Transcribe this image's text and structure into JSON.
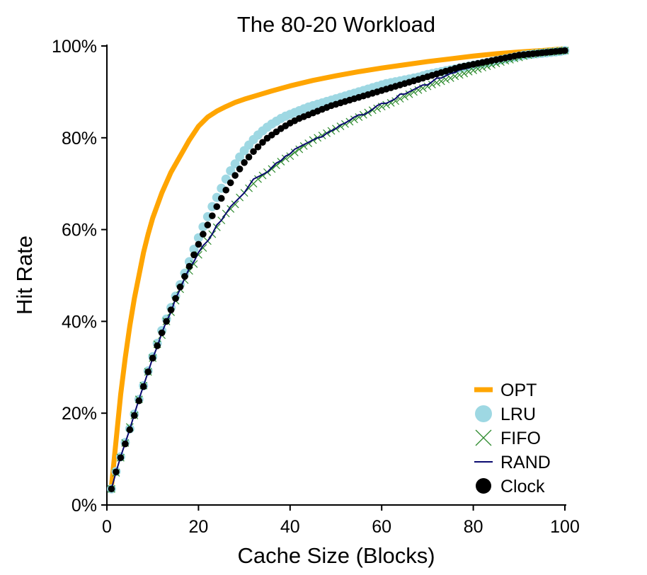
{
  "chart_data": {
    "type": "line",
    "title": "The 80-20 Workload",
    "xlabel": "Cache Size (Blocks)",
    "ylabel": "Hit Rate",
    "xlim": [
      0,
      100
    ],
    "ylim": [
      0,
      100
    ],
    "x_ticks": [
      0,
      20,
      40,
      60,
      80,
      100
    ],
    "x_tick_labels": [
      "0",
      "20",
      "40",
      "60",
      "80",
      "100"
    ],
    "y_ticks": [
      0,
      20,
      40,
      60,
      80,
      100
    ],
    "y_tick_labels": [
      "0%",
      "20%",
      "40%",
      "60%",
      "80%",
      "100%"
    ],
    "grid": false,
    "legend_position": "bottom-right",
    "series": [
      {
        "name": "OPT",
        "color": "#FFA500",
        "style": "thick-line",
        "x": [
          1,
          2,
          3,
          4,
          5,
          6,
          7,
          8,
          9,
          10,
          12,
          14,
          16,
          18,
          20,
          22,
          24,
          26,
          28,
          30,
          33,
          36,
          40,
          45,
          50,
          55,
          60,
          65,
          70,
          75,
          80,
          85,
          90,
          95,
          100
        ],
        "y": [
          4,
          14,
          24,
          32,
          39,
          45,
          50,
          55,
          59,
          62.5,
          68,
          72.5,
          76,
          79.5,
          82.5,
          84.5,
          85.8,
          86.8,
          87.7,
          88.4,
          89.3,
          90.2,
          91.3,
          92.5,
          93.5,
          94.4,
          95.2,
          95.9,
          96.6,
          97.2,
          97.8,
          98.3,
          98.7,
          99,
          99.4
        ]
      },
      {
        "name": "LRU",
        "color": "#9ED8E3",
        "style": "large-dots",
        "x": [
          1,
          2,
          3,
          4,
          5,
          6,
          7,
          8,
          9,
          10,
          11,
          12,
          13,
          14,
          15,
          16,
          17,
          18,
          19,
          20,
          21,
          22,
          23,
          24,
          25,
          26,
          27,
          28,
          29,
          30,
          31,
          32,
          33,
          34,
          35,
          36,
          37,
          38,
          39,
          40,
          41,
          42,
          43,
          44,
          45,
          46,
          47,
          48,
          49,
          50,
          51,
          52,
          53,
          54,
          55,
          56,
          57,
          58,
          59,
          60,
          61,
          62,
          63,
          64,
          65,
          66,
          67,
          68,
          69,
          70,
          71,
          72,
          73,
          74,
          75,
          76,
          77,
          78,
          79,
          80,
          81,
          82,
          83,
          84,
          85,
          86,
          87,
          88,
          89,
          90,
          91,
          92,
          93,
          94,
          95,
          96,
          97,
          98,
          99,
          100
        ],
        "y": [
          3.5,
          7.3,
          10.5,
          13.6,
          16.6,
          19.8,
          23,
          26,
          29.2,
          32.3,
          35.2,
          38,
          40.5,
          43,
          45.5,
          48,
          50.5,
          53,
          55.7,
          58.2,
          60.6,
          62.8,
          65,
          67,
          69,
          71,
          72.8,
          74.3,
          75.8,
          77.2,
          78.4,
          79.6,
          80.6,
          81.5,
          82.3,
          83,
          83.6,
          84.2,
          84.7,
          85.1,
          85.5,
          85.9,
          86.3,
          86.7,
          87,
          87.3,
          87.6,
          87.9,
          88.2,
          88.5,
          88.8,
          89.1,
          89.4,
          89.7,
          90,
          90.3,
          90.6,
          90.9,
          91.2,
          91.5,
          91.8,
          92,
          92.2,
          92.4,
          92.6,
          92.8,
          93,
          93.2,
          93.5,
          93.8,
          94,
          94.2,
          94.4,
          94.6,
          94.8,
          95,
          95.2,
          95.4,
          95.6,
          95.8,
          96,
          96.2,
          96.4,
          96.6,
          96.8,
          97,
          97.2,
          97.4,
          97.6,
          97.8,
          98,
          98.1,
          98.2,
          98.3,
          98.4,
          98.5,
          98.6,
          98.7,
          98.8,
          99
        ]
      },
      {
        "name": "FIFO",
        "color": "#2E8B2E",
        "style": "x-markers",
        "x": [
          1,
          2,
          3,
          4,
          5,
          6,
          7,
          8,
          9,
          10,
          11,
          12,
          13,
          14,
          15,
          16,
          17,
          18,
          19,
          20,
          21,
          22,
          23,
          24,
          25,
          26,
          27,
          28,
          29,
          30,
          31,
          32,
          33,
          34,
          35,
          36,
          37,
          38,
          39,
          40,
          41,
          42,
          43,
          44,
          45,
          46,
          47,
          48,
          49,
          50,
          51,
          52,
          53,
          54,
          55,
          56,
          57,
          58,
          59,
          60,
          61,
          62,
          63,
          64,
          65,
          66,
          67,
          68,
          69,
          70,
          71,
          72,
          73,
          74,
          75,
          76,
          77,
          78,
          79,
          80,
          81,
          82,
          83,
          84,
          85,
          86,
          87,
          88,
          89,
          90,
          91,
          92,
          93,
          94,
          95,
          96,
          97,
          98,
          99,
          100
        ],
        "y": [
          3.5,
          7,
          10.3,
          13.5,
          17,
          19.5,
          23,
          26,
          29,
          32,
          35,
          37,
          40,
          42,
          44.5,
          47,
          49,
          51,
          52.5,
          54.5,
          56,
          57.5,
          59,
          60.5,
          62,
          63.5,
          64.5,
          65.5,
          67,
          68,
          69,
          70,
          71,
          71.8,
          72.5,
          73.2,
          74,
          74.8,
          75.5,
          76,
          76.8,
          77.5,
          78.2,
          78.8,
          79.5,
          80,
          80.5,
          81,
          81.5,
          82,
          82.5,
          83,
          83.5,
          84,
          84.5,
          85,
          85.5,
          86,
          86.4,
          86.8,
          87.2,
          87.6,
          88,
          88.5,
          89,
          89.5,
          90,
          90.4,
          90.8,
          91.2,
          91.6,
          92,
          92.3,
          92.7,
          93,
          93.4,
          93.7,
          94,
          94.4,
          94.7,
          95,
          95.3,
          95.6,
          95.9,
          96.2,
          96.5,
          96.8,
          97,
          97.3,
          97.5,
          97.8,
          98,
          98.2,
          98.4,
          98.5,
          98.6,
          98.7,
          98.8,
          98.9,
          99
        ]
      },
      {
        "name": "RAND",
        "color": "#0A0A70",
        "style": "thin-line",
        "x": [
          1,
          2,
          3,
          4,
          5,
          6,
          7,
          8,
          9,
          10,
          11,
          12,
          13,
          14,
          15,
          16,
          17,
          18,
          19,
          20,
          21,
          22,
          23,
          24,
          25,
          26,
          27,
          28,
          29,
          30,
          31,
          32,
          33,
          34,
          35,
          36,
          37,
          38,
          39,
          40,
          41,
          42,
          43,
          44,
          45,
          46,
          47,
          48,
          49,
          50,
          51,
          52,
          53,
          54,
          55,
          56,
          57,
          58,
          59,
          60,
          61,
          62,
          63,
          64,
          65,
          66,
          67,
          68,
          69,
          70,
          71,
          72,
          73,
          74,
          75,
          76,
          77,
          78,
          79,
          80,
          81,
          82,
          83,
          84,
          85,
          86,
          87,
          88,
          89,
          90,
          91,
          92,
          93,
          94,
          95,
          96,
          97,
          98,
          99,
          100
        ],
        "y": [
          3.5,
          7.2,
          10.5,
          13.5,
          16.5,
          19.8,
          23,
          26,
          29,
          32,
          34.5,
          37.5,
          40,
          42,
          45,
          47,
          49.5,
          51.5,
          53,
          55,
          56.5,
          57.5,
          59,
          61,
          62,
          63.5,
          65,
          66,
          67,
          68,
          69.5,
          71,
          71.5,
          72,
          72.5,
          73.5,
          74.5,
          75,
          76,
          76.5,
          77.5,
          78,
          78.5,
          79,
          79.5,
          80,
          80.2,
          81,
          81.5,
          82,
          82.8,
          83.2,
          83.8,
          84.5,
          85,
          85,
          85.5,
          86.2,
          87,
          87.5,
          87.5,
          88,
          88.5,
          89.5,
          89.5,
          90,
          90.5,
          91,
          91.5,
          91.5,
          92.2,
          93,
          93,
          93.5,
          94,
          94.2,
          94.8,
          95,
          95.2,
          95.8,
          96,
          96.3,
          96.8,
          97,
          97.2,
          97.5,
          97.8,
          98,
          98.2,
          98.4,
          98.5,
          98.6,
          98.7,
          98.8,
          98.9,
          99,
          99,
          99,
          99,
          99
        ]
      },
      {
        "name": "Clock",
        "color": "#000000",
        "style": "dots",
        "x": [
          1,
          2,
          3,
          4,
          5,
          6,
          7,
          8,
          9,
          10,
          11,
          12,
          13,
          14,
          15,
          16,
          17,
          18,
          19,
          20,
          21,
          22,
          23,
          24,
          25,
          26,
          27,
          28,
          29,
          30,
          31,
          32,
          33,
          34,
          35,
          36,
          37,
          38,
          39,
          40,
          41,
          42,
          43,
          44,
          45,
          46,
          47,
          48,
          49,
          50,
          51,
          52,
          53,
          54,
          55,
          56,
          57,
          58,
          59,
          60,
          61,
          62,
          63,
          64,
          65,
          66,
          67,
          68,
          69,
          70,
          71,
          72,
          73,
          74,
          75,
          76,
          77,
          78,
          79,
          80,
          81,
          82,
          83,
          84,
          85,
          86,
          87,
          88,
          89,
          90,
          91,
          92,
          93,
          94,
          95,
          96,
          97,
          98,
          99,
          100
        ],
        "y": [
          3.5,
          7.2,
          10.3,
          13.3,
          16.4,
          19.5,
          22.7,
          25.8,
          29,
          32,
          34.7,
          37.5,
          40,
          42.5,
          45,
          47.5,
          49.8,
          52,
          54.5,
          56.8,
          59,
          61,
          63,
          65,
          66.8,
          68.6,
          70.2,
          71.8,
          73.2,
          74.6,
          75.8,
          77,
          78,
          79,
          79.9,
          80.6,
          81.3,
          82,
          82.6,
          83.2,
          83.7,
          84.2,
          84.6,
          85,
          85.4,
          85.8,
          86.2,
          86.6,
          87,
          87.3,
          87.6,
          87.9,
          88.2,
          88.5,
          88.8,
          89.1,
          89.4,
          89.7,
          90,
          90.3,
          90.6,
          90.9,
          91.2,
          91.5,
          91.8,
          92.1,
          92.4,
          92.7,
          93,
          93.3,
          93.6,
          93.9,
          94.2,
          94.5,
          94.8,
          95.1,
          95.4,
          95.6,
          95.8,
          96,
          96.2,
          96.4,
          96.6,
          96.8,
          97,
          97.2,
          97.4,
          97.6,
          97.8,
          98,
          98.1,
          98.2,
          98.3,
          98.4,
          98.5,
          98.6,
          98.7,
          98.8,
          98.9,
          99
        ]
      }
    ]
  }
}
